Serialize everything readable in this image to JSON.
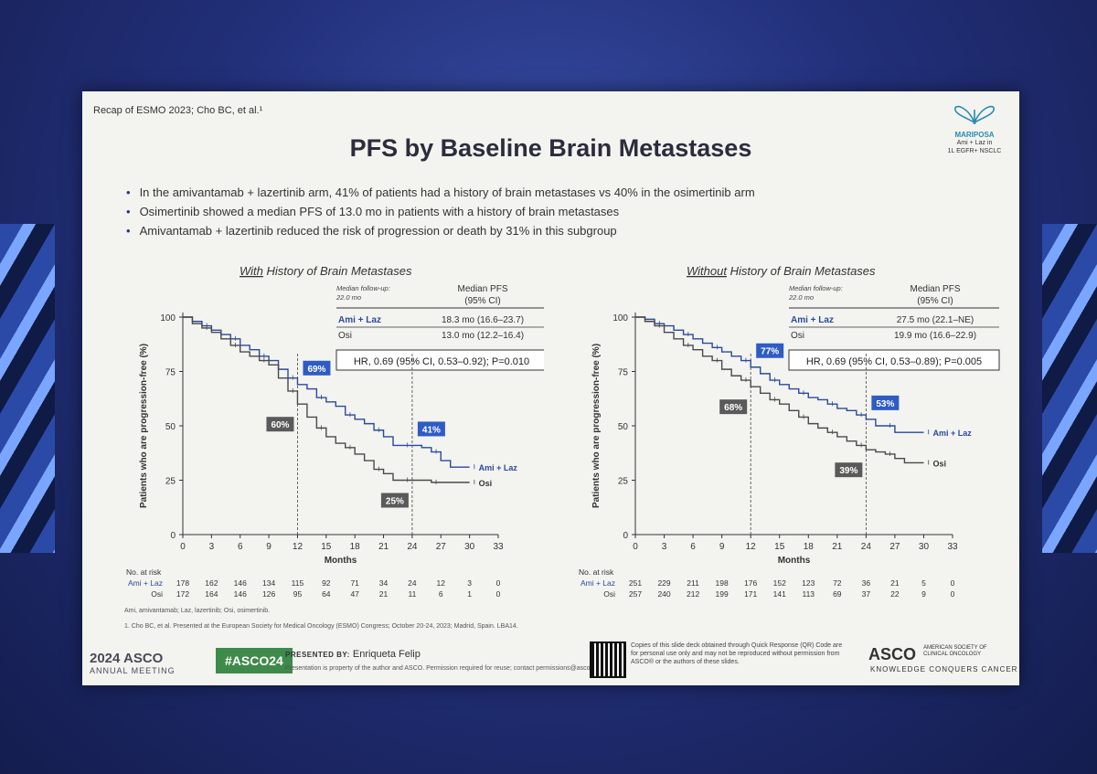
{
  "slide": {
    "recap": "Recap of ESMO 2023; Cho BC, et al.¹",
    "title": "PFS by Baseline Brain Metastases",
    "logo": {
      "name": "MARIPOSA",
      "line1": "Ami + Laz in",
      "line2": "1L EGFR+ NSCLC"
    },
    "bullets": [
      "In the amivantamab + lazertinib arm, 41% of patients had a history of brain metastases vs 40% in the osimertinib arm",
      "Osimertinib showed a median PFS of 13.0 mo in patients with a history of brain metastases",
      "Amivantamab + lazertinib reduced the risk of progression or death by 31% in this subgroup"
    ],
    "footnote_abbrev": "Ami, amivantamab; Laz, lazertinib; Osi, osimertinib.",
    "footnote_ref": "1. Cho BC, et al. Presented at the European Society for Medical Oncology (ESMO) Congress; October 20-24, 2023; Madrid, Spain. LBA14.",
    "footer": {
      "year": "2024 ASCO",
      "meeting": "ANNUAL MEETING",
      "hashtag": "#ASCO24",
      "presented_by_label": "PRESENTED BY:",
      "presenter": "Enriqueta Felip",
      "presenter_note": "Presentation is property of the author and ASCO. Permission required for reuse; contact permissions@asco.org",
      "copyright": "Copies of this slide deck obtained through Quick Response (QR) Code are for personal use only and may not be reproduced without permission from ASCO® or the authors of these slides.",
      "asco": "ASCO",
      "asco_society": "AMERICAN SOCIETY OF CLINICAL ONCOLOGY",
      "tagline": "KNOWLEDGE CONQUERS CANCER"
    }
  },
  "colors": {
    "ami": "#2b4a9a",
    "osi": "#4a4a4a",
    "grey_label": "#555555"
  },
  "chart_data": [
    {
      "type": "line",
      "title": "With History of Brain Metastases",
      "title_underlined": "With",
      "xlabel": "Months",
      "ylabel": "Patients who are progression-free (%)",
      "xlim": [
        0,
        33
      ],
      "ylim": [
        0,
        100
      ],
      "xticks": [
        0,
        3,
        6,
        9,
        12,
        15,
        18,
        21,
        24,
        27,
        30,
        33
      ],
      "yticks": [
        0,
        25,
        50,
        75,
        100
      ],
      "followup_label": "Median follow-up:",
      "followup_value": "22.0 mo",
      "table_header": "Median PFS (95% CI)",
      "arms": [
        {
          "label": "Ami + Laz",
          "value": "18.3 mo (16.6–23.7)"
        },
        {
          "label": "Osi",
          "value": "13.0 mo (12.2–16.4)"
        }
      ],
      "hr_text": "HR, 0.69 (95% CI, 0.53–0.92); P=0.010",
      "series": [
        {
          "name": "Ami + Laz",
          "x": [
            0,
            1,
            2,
            3,
            4,
            5,
            6,
            7,
            8,
            9,
            10,
            11,
            12,
            13,
            14,
            15,
            16,
            17,
            18,
            19,
            20,
            21,
            22,
            23,
            24,
            25,
            26,
            27,
            28,
            30
          ],
          "y": [
            100,
            98,
            96,
            94,
            92,
            90,
            87,
            85,
            82,
            80,
            76,
            72,
            69,
            67,
            63,
            61,
            59,
            55,
            53,
            51,
            48,
            45,
            41,
            41,
            41,
            40,
            38,
            34,
            31,
            31
          ]
        },
        {
          "name": "Osi",
          "x": [
            0,
            1,
            2,
            3,
            4,
            5,
            6,
            7,
            8,
            9,
            10,
            11,
            12,
            13,
            14,
            15,
            16,
            17,
            18,
            19,
            20,
            21,
            22,
            23,
            24,
            25,
            26,
            27,
            28,
            30
          ],
          "y": [
            100,
            97,
            95,
            93,
            90,
            87,
            84,
            82,
            80,
            78,
            72,
            66,
            60,
            54,
            49,
            45,
            42,
            40,
            37,
            34,
            30,
            28,
            25,
            25,
            25,
            25,
            24,
            24,
            24,
            24
          ]
        }
      ],
      "landmarks": [
        {
          "x": 12,
          "label": "69%",
          "y": 69,
          "series": "Ami + Laz"
        },
        {
          "x": 12,
          "label": "60%",
          "y": 60,
          "series": "Osi"
        },
        {
          "x": 24,
          "label": "41%",
          "y": 41,
          "series": "Ami + Laz"
        },
        {
          "x": 24,
          "label": "25%",
          "y": 25,
          "series": "Osi"
        }
      ],
      "risk_table": {
        "header": "No. at risk",
        "rows": [
          {
            "label": "Ami + Laz",
            "values": [
              178,
              162,
              146,
              134,
              115,
              92,
              71,
              34,
              24,
              12,
              3,
              0
            ]
          },
          {
            "label": "Osi",
            "values": [
              172,
              164,
              146,
              126,
              95,
              64,
              47,
              21,
              11,
              6,
              1,
              0
            ]
          }
        ]
      }
    },
    {
      "type": "line",
      "title": "Without History of Brain Metastases",
      "title_underlined": "Without",
      "xlabel": "Months",
      "ylabel": "Patients who are progression-free (%)",
      "xlim": [
        0,
        33
      ],
      "ylim": [
        0,
        100
      ],
      "xticks": [
        0,
        3,
        6,
        9,
        12,
        15,
        18,
        21,
        24,
        27,
        30,
        33
      ],
      "yticks": [
        0,
        25,
        50,
        75,
        100
      ],
      "followup_label": "Median follow-up:",
      "followup_value": "22.0 mo",
      "table_header": "Median PFS (95% CI)",
      "arms": [
        {
          "label": "Ami + Laz",
          "value": "27.5 mo (22.1–NE)"
        },
        {
          "label": "Osi",
          "value": "19.9 mo (16.6–22.9)"
        }
      ],
      "hr_text": "HR, 0.69 (95% CI, 0.53–0.89); P=0.005",
      "series": [
        {
          "name": "Ami + Laz",
          "x": [
            0,
            1,
            2,
            3,
            4,
            5,
            6,
            7,
            8,
            9,
            10,
            11,
            12,
            13,
            14,
            15,
            16,
            17,
            18,
            19,
            20,
            21,
            22,
            23,
            24,
            25,
            26,
            27,
            28,
            30
          ],
          "y": [
            100,
            99,
            97,
            96,
            94,
            92,
            90,
            88,
            86,
            84,
            82,
            80,
            77,
            74,
            71,
            69,
            67,
            65,
            63,
            62,
            60,
            58,
            57,
            55,
            53,
            50,
            50,
            47,
            47,
            47
          ]
        },
        {
          "name": "Osi",
          "x": [
            0,
            1,
            2,
            3,
            4,
            5,
            6,
            7,
            8,
            9,
            10,
            11,
            12,
            13,
            14,
            15,
            16,
            17,
            18,
            19,
            20,
            21,
            22,
            23,
            24,
            25,
            26,
            27,
            28,
            30
          ],
          "y": [
            100,
            98,
            96,
            93,
            90,
            87,
            85,
            82,
            80,
            76,
            73,
            71,
            68,
            65,
            62,
            60,
            57,
            54,
            51,
            49,
            47,
            45,
            43,
            41,
            39,
            38,
            37,
            35,
            33,
            33
          ]
        }
      ],
      "landmarks": [
        {
          "x": 12,
          "label": "77%",
          "y": 77,
          "series": "Ami + Laz"
        },
        {
          "x": 12,
          "label": "68%",
          "y": 68,
          "series": "Osi"
        },
        {
          "x": 24,
          "label": "53%",
          "y": 53,
          "series": "Ami + Laz"
        },
        {
          "x": 24,
          "label": "39%",
          "y": 39,
          "series": "Osi"
        }
      ],
      "risk_table": {
        "header": "No. at risk",
        "rows": [
          {
            "label": "Ami + Laz",
            "values": [
              251,
              229,
              211,
              198,
              176,
              152,
              123,
              72,
              36,
              21,
              5,
              0
            ]
          },
          {
            "label": "Osi",
            "values": [
              257,
              240,
              212,
              199,
              171,
              141,
              113,
              69,
              37,
              22,
              9,
              0
            ]
          }
        ]
      }
    }
  ]
}
